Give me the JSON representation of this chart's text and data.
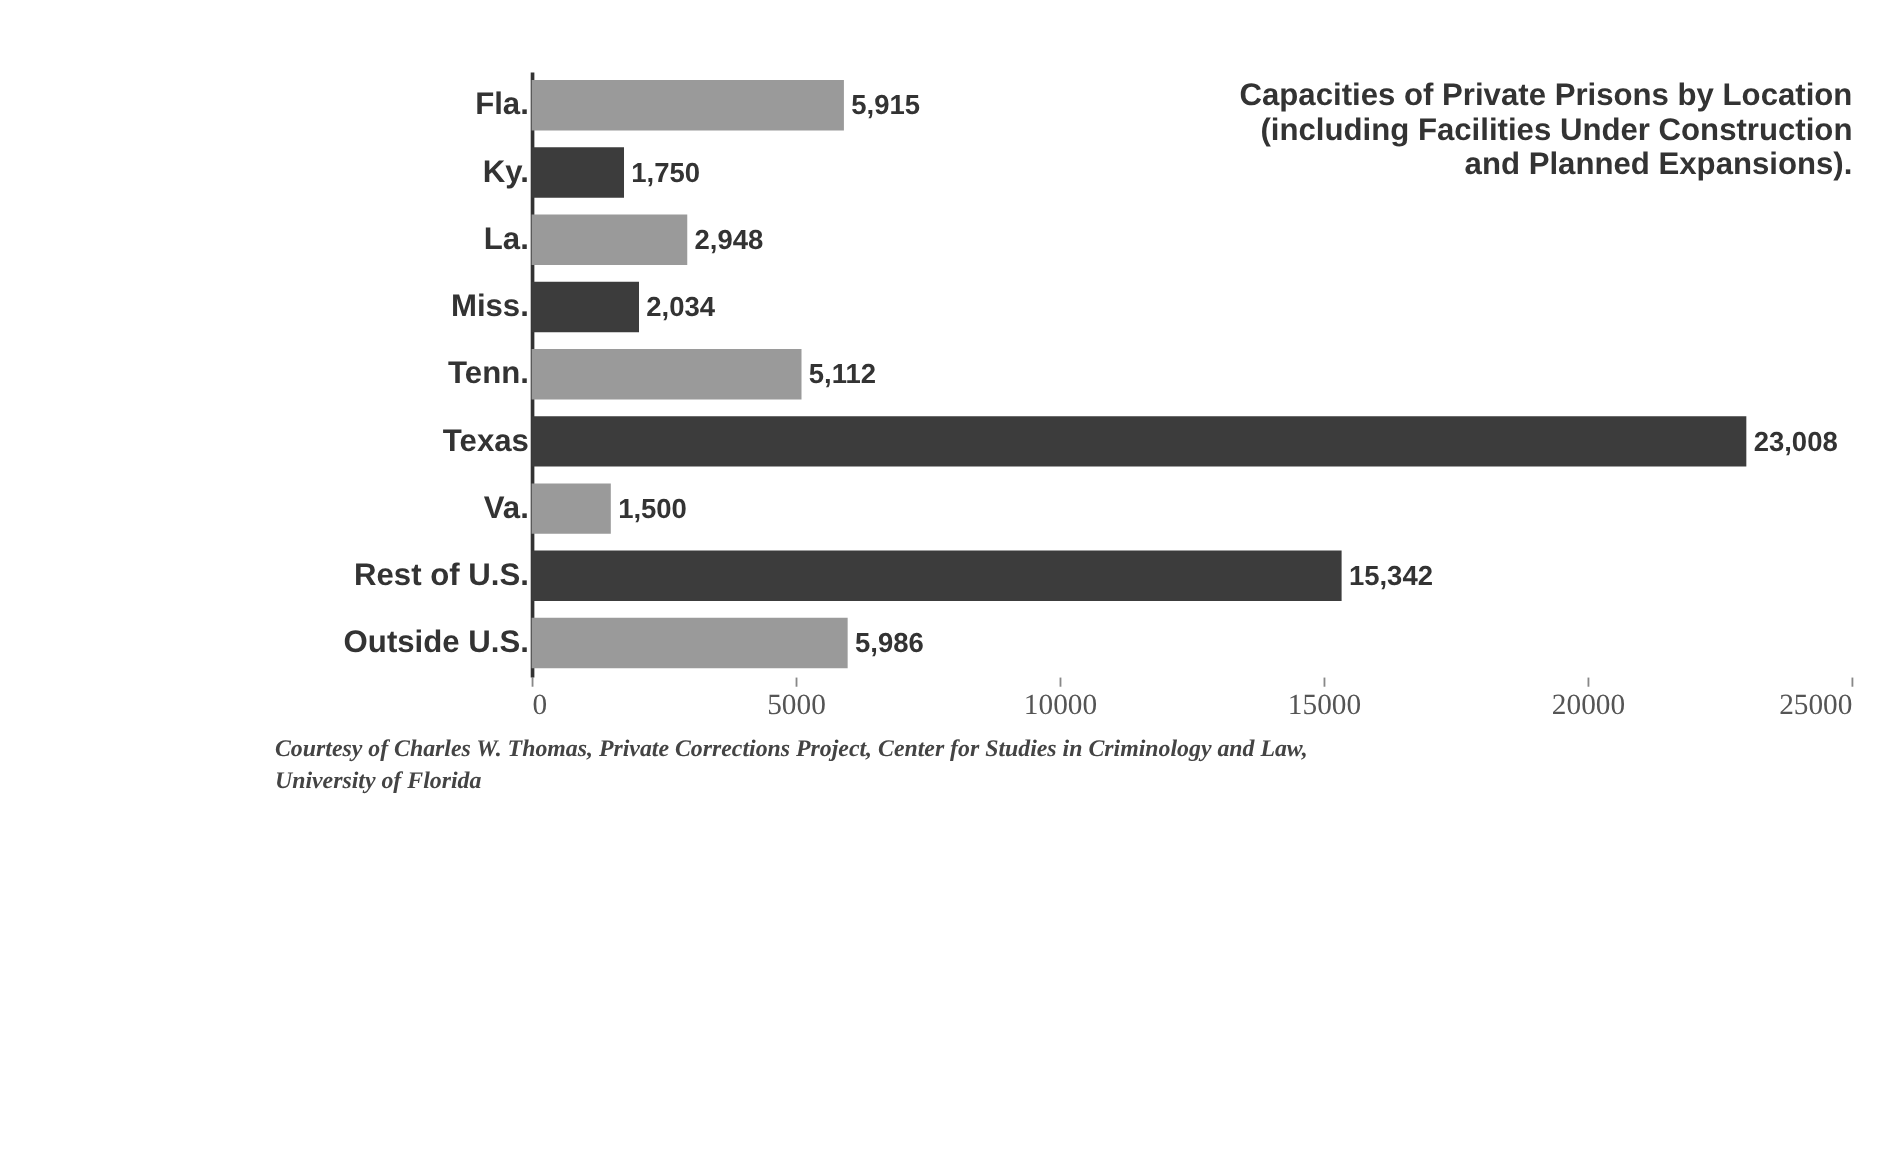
{
  "chart_data": {
    "type": "bar",
    "orientation": "horizontal",
    "title": [
      "Capacities of Private Prisons by Location",
      "(including Facilities Under Construction",
      "and Planned Expansions)."
    ],
    "categories": [
      "Fla.",
      "Ky.",
      "La.",
      "Miss.",
      "Tenn.",
      "Texas",
      "Va.",
      "Rest of U.S.",
      "Outside U.S."
    ],
    "values": [
      5915,
      1750,
      2948,
      2034,
      5112,
      23008,
      1500,
      15342,
      5986
    ],
    "colors": [
      "#9a9a9a",
      "#3c3c3c",
      "#9a9a9a",
      "#3c3c3c",
      "#9a9a9a",
      "#3c3c3c",
      "#9a9a9a",
      "#3c3c3c",
      "#9a9a9a"
    ],
    "xlim": [
      0,
      25000
    ],
    "xticks": [
      0,
      5000,
      10000,
      15000,
      20000,
      25000
    ],
    "value_labels": [
      "5,915",
      "1,750",
      "2,948",
      "2,034",
      "5,112",
      "23,008",
      "1,500",
      "15,342",
      "5,986"
    ],
    "grid": false,
    "annotations": [
      "Courtesy of Charles W. Thomas, Private Corrections Project, Center for Studies in Criminology and Law,",
      "University of Florida"
    ]
  }
}
